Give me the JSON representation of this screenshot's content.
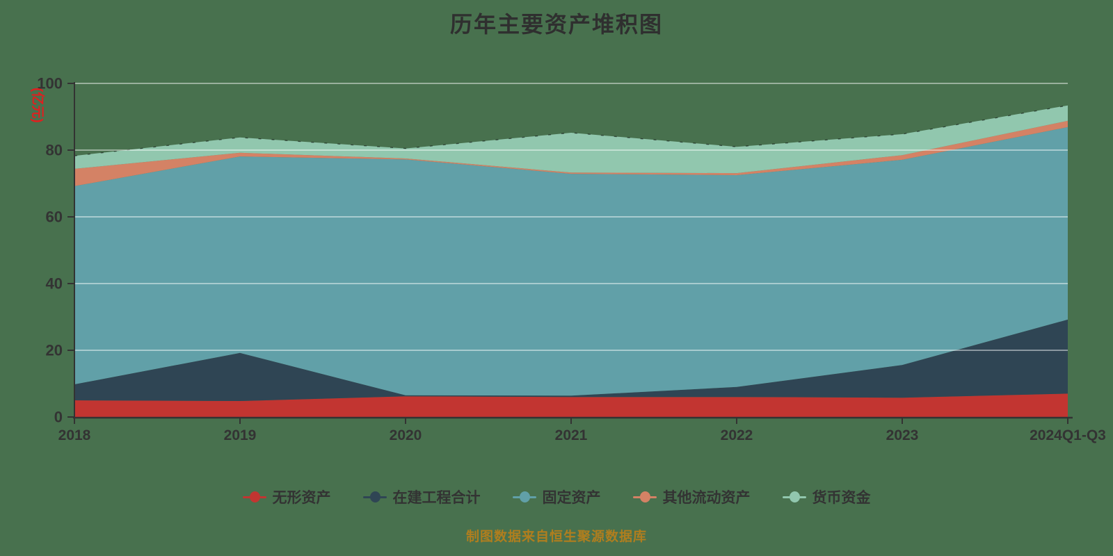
{
  "page": {
    "background": "#48714E"
  },
  "chart": {
    "title": "历年主要资产堆积图",
    "y_axis_name": "(亿元)",
    "y_axis_name_color": "#E01F1F",
    "caption": "制图数据来自恒生聚源数据库",
    "caption_color": "#B07E1E",
    "axis_color": "#333333",
    "gridline_color": "rgba(255,255,255,0.45)"
  },
  "chart_data": {
    "type": "area",
    "stacked": true,
    "title": "历年主要资产堆积图",
    "xlabel": "",
    "ylabel": "(亿元)",
    "ylim": [
      0,
      100
    ],
    "y_ticks": [
      0,
      20,
      40,
      60,
      80,
      100
    ],
    "grid": true,
    "legend_position": "bottom",
    "legend_icon": "line-circle-icon",
    "categories": [
      "2018",
      "2019",
      "2020",
      "2021",
      "2022",
      "2023",
      "2024Q1-Q3"
    ],
    "series": [
      {
        "name": "无形资产",
        "key": "intangible-assets",
        "color": "#C23531",
        "values": [
          5.0,
          4.8,
          6.2,
          6.0,
          6.0,
          5.8,
          7.0
        ]
      },
      {
        "name": "在建工程合计",
        "key": "construction-in-progress",
        "color": "#2F4554",
        "values": [
          4.8,
          14.4,
          0.3,
          0.4,
          3.0,
          9.8,
          22.2
        ]
      },
      {
        "name": "固定资产",
        "key": "fixed-assets",
        "color": "#61A0A8",
        "values": [
          59.4,
          58.9,
          70.7,
          66.5,
          63.5,
          61.5,
          57.7
        ]
      },
      {
        "name": "其他流动资产",
        "key": "other-current-assets",
        "color": "#D48265",
        "values": [
          5.2,
          1.1,
          0.3,
          0.4,
          0.6,
          1.4,
          1.9
        ]
      },
      {
        "name": "货币资金",
        "key": "monetary-funds",
        "color": "#91C7AE",
        "values": [
          3.9,
          4.6,
          3.0,
          11.9,
          7.9,
          6.3,
          4.6
        ]
      }
    ],
    "stack_totals": [
      78.3,
      83.8,
      80.5,
      85.2,
      81.0,
      84.8,
      93.3
    ]
  }
}
